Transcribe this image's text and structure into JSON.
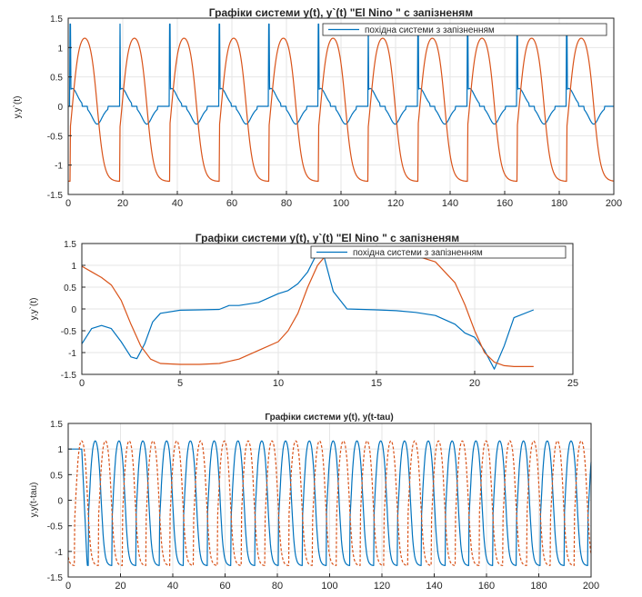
{
  "colors": {
    "blue": "#0072bd",
    "orange": "#d95319",
    "grid": "#e6e6e6",
    "axis": "#262626"
  },
  "chart_data": [
    {
      "type": "line",
      "title": "Графіки системи y(t), y`(t) \"El Nino \" с запізненям",
      "ylabel": "y,y`(t)",
      "xlim": [
        0,
        200
      ],
      "ylim": [
        -1.5,
        1.5
      ],
      "xticks": [
        "0",
        "20",
        "40",
        "60",
        "80",
        "100",
        "120",
        "140",
        "160",
        "180",
        "200"
      ],
      "yticks": [
        "-1.5",
        "-1",
        "-0.5",
        "0",
        "0.5",
        "1",
        "1.5"
      ],
      "legend": {
        "entries": [
          "похідна системи з запізненням"
        ],
        "position": "top-right"
      },
      "grid": true,
      "series": [
        {
          "name": "похідна системи з запізненням",
          "color": "blue",
          "kind": "derivative",
          "period": 18.2,
          "offset": 0.8
        },
        {
          "color": "orange",
          "kind": "square",
          "period": 18.2,
          "offset": 0.8
        }
      ]
    },
    {
      "type": "line",
      "title": "Графіки системи y(t), y`(t) \"El Nino \" с запізненям",
      "ylabel": "y,y`(t)",
      "xlim": [
        0,
        25
      ],
      "ylim": [
        -1.5,
        1.5
      ],
      "xticks": [
        "0",
        "5",
        "10",
        "15",
        "20",
        "25"
      ],
      "yticks": [
        "-1.5",
        "-1",
        "-0.5",
        "0",
        "0.5",
        "1",
        "1.5"
      ],
      "legend": {
        "entries": [
          "похідна системи з запізненням"
        ],
        "position": "top-right"
      },
      "grid": true,
      "series": [
        {
          "name": "похідна системи з запізненням",
          "color": "blue",
          "x": [
            0,
            0.5,
            1,
            1.5,
            2,
            2.5,
            2.8,
            3.2,
            3.6,
            4,
            5,
            6,
            7,
            7.5,
            8,
            9,
            10,
            10.5,
            11,
            11.5,
            12,
            12.3,
            12.8,
            13.5,
            15,
            16,
            17,
            18,
            19,
            19.5,
            20,
            20.5,
            21,
            21.5,
            22,
            23
          ],
          "y": [
            -0.8,
            -0.45,
            -0.38,
            -0.45,
            -0.75,
            -1.1,
            -1.14,
            -0.8,
            -0.3,
            -0.1,
            -0.03,
            -0.02,
            -0.01,
            0.08,
            0.08,
            0.15,
            0.35,
            0.42,
            0.58,
            0.85,
            1.3,
            1.25,
            0.4,
            0.0,
            -0.02,
            -0.04,
            -0.08,
            -0.15,
            -0.35,
            -0.55,
            -0.65,
            -0.95,
            -1.38,
            -0.85,
            -0.2,
            -0.02
          ]
        },
        {
          "color": "orange",
          "x": [
            0,
            0.5,
            1,
            1.5,
            2,
            2.5,
            3,
            3.5,
            4,
            5,
            6,
            7,
            8,
            9,
            10,
            10.5,
            11,
            11.5,
            12,
            12.5,
            13,
            14,
            15,
            16,
            17,
            18,
            19,
            19.5,
            20,
            20.5,
            21,
            21.5,
            22,
            23
          ],
          "y": [
            0.98,
            0.85,
            0.72,
            0.55,
            0.2,
            -0.35,
            -0.85,
            -1.15,
            -1.25,
            -1.27,
            -1.27,
            -1.25,
            -1.15,
            -0.95,
            -0.75,
            -0.5,
            -0.1,
            0.5,
            1.0,
            1.27,
            1.3,
            1.3,
            1.3,
            1.28,
            1.22,
            1.08,
            0.6,
            0.1,
            -0.5,
            -1.0,
            -1.22,
            -1.3,
            -1.32,
            -1.32
          ]
        }
      ]
    },
    {
      "type": "line",
      "title": "Графіки системи y(t), y(t-tau)",
      "ylabel": "y,y(t-tau)",
      "xlim": [
        0,
        200
      ],
      "ylim": [
        -1.5,
        1.5
      ],
      "xticks": [
        "0",
        "20",
        "40",
        "60",
        "80",
        "100",
        "120",
        "140",
        "160",
        "180",
        "200"
      ],
      "yticks": [
        "-1.5",
        "-1",
        "-0.5",
        "0",
        "0.5",
        "1",
        "1.5"
      ],
      "grid": true,
      "series": [
        {
          "color": "blue",
          "kind": "delayed-square",
          "period": 9.1,
          "offset": 7.2
        },
        {
          "color": "orange",
          "kind": "square",
          "period": 9.1,
          "offset": 2.5,
          "dash": true
        }
      ]
    }
  ]
}
